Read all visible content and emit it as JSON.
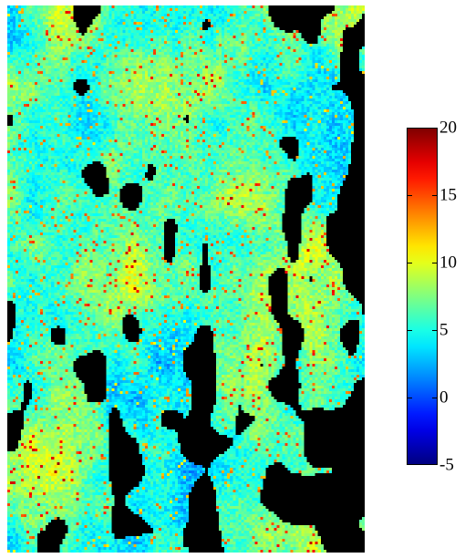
{
  "chart_data": {
    "type": "heatmap",
    "title": "",
    "xlabel": "",
    "ylabel": "",
    "colorbar": {
      "colormap": "jet",
      "vmin": -5,
      "vmax": 20,
      "ticks": [
        20,
        15,
        10,
        5,
        0,
        -5
      ],
      "tick_labels": [
        "20",
        "15",
        "10",
        "5",
        "0",
        "-5"
      ]
    },
    "missing_value_color": "#000000",
    "grid": false,
    "legend_placement": "right",
    "value_distribution": {
      "dominant_range": [
        2,
        6
      ],
      "high_value_streaks": [
        12,
        20
      ],
      "missing_fraction_estimate": 0.3
    }
  }
}
